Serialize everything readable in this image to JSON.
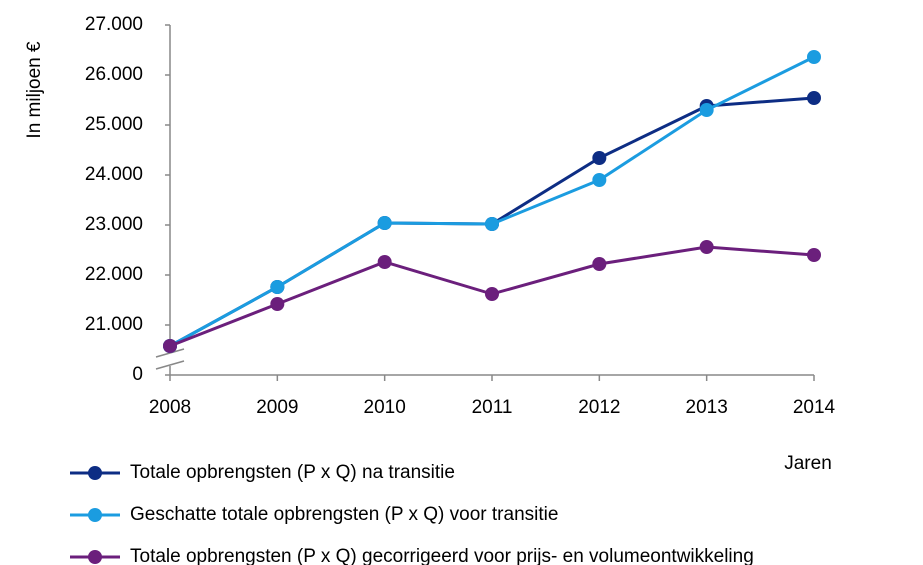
{
  "chart_data": {
    "type": "line",
    "y_label": "In miljoen €",
    "x_label": "Jaren",
    "categories": [
      "2008",
      "2009",
      "2010",
      "2011",
      "2012",
      "2013",
      "2014"
    ],
    "series": [
      {
        "name": "Totale opbrengsten (P x Q) na transitie",
        "color": "#0d2d84",
        "values": [
          20580,
          21760,
          23040,
          23020,
          24340,
          25380,
          25540
        ]
      },
      {
        "name": "Geschatte totale opbrengsten (P x Q) voor transitie",
        "color": "#1b9ce0",
        "values": [
          20580,
          21760,
          23040,
          23020,
          23900,
          25300,
          26360
        ]
      },
      {
        "name": "Totale opbrengsten (P x Q) gecorrigeerd voor prijs- en volumeontwikkeling",
        "color": "#6b1f7c",
        "values": [
          20580,
          21420,
          22260,
          21620,
          22220,
          22560,
          22400
        ]
      }
    ],
    "ylim": [
      0,
      27000
    ],
    "y_break": [
      0,
      20000
    ],
    "yticks": [
      0,
      {
        "value": 21000,
        "label": "21.000"
      },
      {
        "value": 22000,
        "label": "22.000"
      },
      {
        "value": 23000,
        "label": "23.000"
      },
      {
        "value": 24000,
        "label": "24.000"
      },
      {
        "value": 25000,
        "label": "25.000"
      },
      {
        "value": 26000,
        "label": "26.000"
      },
      {
        "value": 27000,
        "label": "27.000"
      }
    ],
    "grid": false
  }
}
